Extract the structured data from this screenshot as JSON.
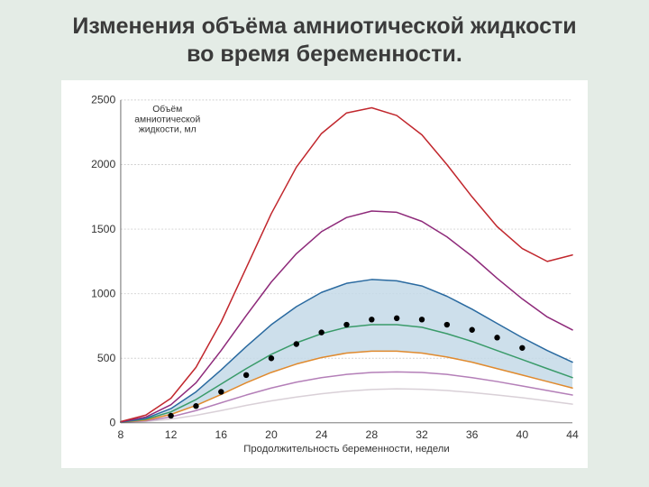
{
  "slide": {
    "title_line1": "Изменения объёма амниотической жидкости",
    "title_line2": "во время беременности.",
    "background_color": "#e4ece6",
    "chart_background": "#ffffff"
  },
  "chart": {
    "type": "line",
    "y_axis_note_l1": "Объём",
    "y_axis_note_l2": "амниотической",
    "y_axis_note_l3": "жидкости, мл",
    "x_title": "Продолжительность беременности, недели",
    "xlim": [
      8,
      44
    ],
    "ylim": [
      0,
      2500
    ],
    "xtick_step": 4,
    "ytick_step": 500,
    "xticks": [
      8,
      12,
      16,
      20,
      24,
      28,
      32,
      36,
      40,
      44
    ],
    "yticks": [
      0,
      500,
      1000,
      1500,
      2000,
      2500
    ],
    "grid_color": "#cfcfcf",
    "axis_color": "#666666",
    "fill_band": {
      "between_series": [
        "p75",
        "p25"
      ],
      "fill": "#c4d9e8",
      "opacity": 0.85
    },
    "series": {
      "p99": {
        "color": "#c1272d",
        "width": 1.6,
        "x": [
          8,
          10,
          12,
          14,
          16,
          18,
          20,
          22,
          24,
          26,
          28,
          30,
          32,
          34,
          36,
          38,
          40,
          42,
          44
        ],
        "y": [
          10,
          60,
          190,
          430,
          780,
          1200,
          1620,
          1980,
          2240,
          2400,
          2440,
          2380,
          2230,
          2000,
          1750,
          1520,
          1350,
          1250,
          1300
        ]
      },
      "p95": {
        "color": "#8e2a7a",
        "width": 1.6,
        "x": [
          8,
          10,
          12,
          14,
          16,
          18,
          20,
          22,
          24,
          26,
          28,
          30,
          32,
          34,
          36,
          38,
          40,
          42,
          44
        ],
        "y": [
          8,
          45,
          140,
          310,
          560,
          830,
          1090,
          1310,
          1480,
          1590,
          1640,
          1630,
          1560,
          1440,
          1290,
          1120,
          960,
          820,
          720
        ]
      },
      "p75": {
        "color": "#2a6aa0",
        "width": 1.6,
        "x": [
          8,
          10,
          12,
          14,
          16,
          18,
          20,
          22,
          24,
          26,
          28,
          30,
          32,
          34,
          36,
          38,
          40,
          42,
          44
        ],
        "y": [
          6,
          35,
          110,
          240,
          410,
          590,
          760,
          900,
          1010,
          1080,
          1110,
          1100,
          1060,
          980,
          880,
          770,
          660,
          560,
          470
        ]
      },
      "p50": {
        "color": "#3a9b6a",
        "width": 1.6,
        "x": [
          8,
          10,
          12,
          14,
          16,
          18,
          20,
          22,
          24,
          26,
          28,
          30,
          32,
          34,
          36,
          38,
          40,
          42,
          44
        ],
        "y": [
          5,
          28,
          85,
          180,
          300,
          420,
          530,
          620,
          690,
          740,
          760,
          760,
          740,
          690,
          630,
          560,
          490,
          420,
          350
        ]
      },
      "p25": {
        "color": "#e08a2e",
        "width": 1.6,
        "x": [
          8,
          10,
          12,
          14,
          16,
          18,
          20,
          22,
          24,
          26,
          28,
          30,
          32,
          34,
          36,
          38,
          40,
          42,
          44
        ],
        "y": [
          4,
          22,
          65,
          135,
          220,
          310,
          390,
          455,
          505,
          540,
          555,
          555,
          540,
          510,
          470,
          420,
          370,
          320,
          270
        ]
      },
      "p5": {
        "color": "#b47fb8",
        "width": 1.6,
        "x": [
          8,
          10,
          12,
          14,
          16,
          18,
          20,
          22,
          24,
          26,
          28,
          30,
          32,
          34,
          36,
          38,
          40,
          42,
          44
        ],
        "y": [
          3,
          16,
          46,
          95,
          155,
          215,
          270,
          315,
          350,
          375,
          390,
          395,
          390,
          375,
          350,
          320,
          285,
          250,
          215
        ]
      },
      "p1": {
        "color": "#d9d0d7",
        "width": 1.6,
        "x": [
          8,
          10,
          12,
          14,
          16,
          18,
          20,
          22,
          24,
          26,
          28,
          30,
          32,
          34,
          36,
          38,
          40,
          42,
          44
        ],
        "y": [
          2,
          10,
          28,
          58,
          95,
          135,
          170,
          200,
          225,
          245,
          258,
          263,
          260,
          250,
          235,
          215,
          195,
          170,
          145
        ]
      }
    },
    "scatter": {
      "color": "#000000",
      "radius": 3.4,
      "x": [
        12,
        14,
        16,
        18,
        20,
        22,
        24,
        26,
        28,
        30,
        32,
        34,
        36,
        38,
        40
      ],
      "y": [
        55,
        130,
        240,
        370,
        500,
        610,
        700,
        760,
        800,
        810,
        800,
        760,
        720,
        660,
        580
      ]
    },
    "title_fontsize": 25,
    "tick_fontsize": 13,
    "axis_note_fontsize": 11,
    "xtitle_fontsize": 12
  }
}
